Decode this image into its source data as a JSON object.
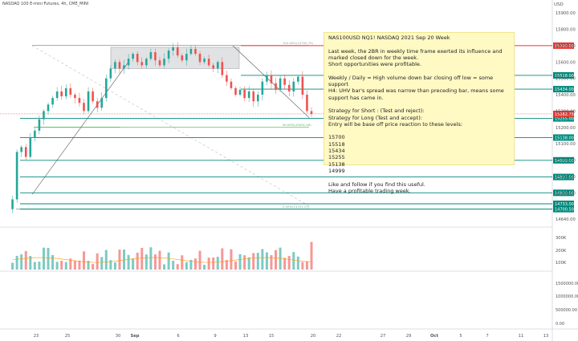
{
  "header": {
    "symbol": "NASDAQ 100 E-mini Futures, 4h, CME_MINI",
    "currency": "USD"
  },
  "note": {
    "lines": [
      "NAS100USD NQ1! NASDAQ 2021 Sep 20 Week",
      "",
      "Last week, the 2BR in weekly time frame exerted its influence and marked closed down for the week.",
      "Short opportunities were profitable.",
      "",
      "Weekly / Daily = High volume down bar closing off low = some support",
      "H4: UHV bar's spread was narrow than preceding bar, means some support has came in.",
      "",
      "Strategy for Short : (Test and reject):",
      "Strategy for Long (Test and accept):",
      "Entry will be base off price reaction to these levels:",
      "",
      "15700",
      "15518",
      "15434",
      "15255",
      "15138",
      "14999",
      "",
      "Like and follow if you find this useful.",
      "Have a profitable trading week."
    ]
  },
  "chart_data": {
    "type": "candlestick",
    "y_axis_ticks": [
      "15900.00",
      "15800.00",
      "15700.00",
      "15600.00",
      "15500.00",
      "15400.00",
      "15300.00",
      "15200.00",
      "15100.00",
      "15000.00",
      "14900.00",
      "14800.00",
      "14640.00"
    ],
    "ylim": [
      14630,
      15930
    ],
    "x_axis_ticks": [
      "23",
      "25",
      "30",
      "Sep",
      "6",
      "9",
      "13",
      "15",
      "20",
      "22",
      "27",
      "29",
      "Oct",
      "5",
      "7",
      "11",
      "13"
    ],
    "levels": [
      {
        "label": "15700.00",
        "value": 15700,
        "color": "#e53935"
      },
      {
        "label": "15518.00",
        "value": 15518,
        "color": "#00897b"
      },
      {
        "label": "15434.00",
        "value": 15434,
        "color": "#00897b"
      },
      {
        "label": "15255.00",
        "value": 15255,
        "color": "#00897b"
      },
      {
        "label": "15138.00",
        "value": 15138,
        "color": "#00897b"
      },
      {
        "label": "14999.00",
        "value": 14999,
        "color": "#00897b"
      },
      {
        "label": "14897.00",
        "value": 14897,
        "color": "#00897b"
      },
      {
        "label": "14800.00",
        "value": 14800,
        "color": "#00897b"
      },
      {
        "label": "14733.00",
        "value": 14733,
        "color": "#00897b"
      },
      {
        "label": "14700.50",
        "value": 14700.5,
        "color": "#00897b"
      }
    ],
    "current_price": {
      "label": "15282.75",
      "value": 15282.75,
      "color": "#e53935"
    },
    "fib_labels": [
      "100.00%(15700.75)",
      "50.00%(15201.00)",
      "0.00%(14701.25)"
    ],
    "volume_ticks": [
      "300K",
      "200K",
      "100K"
    ],
    "oscillator_ticks": [
      "1500000.00",
      "1000000.00",
      "500000.00",
      "0.00"
    ],
    "price_path": [
      14700,
      14760,
      15050,
      15080,
      15020,
      15140,
      15180,
      15250,
      15300,
      15340,
      15380,
      15420,
      15390,
      15440,
      15400,
      15380,
      15350,
      15300,
      15420,
      15360,
      15320,
      15380,
      15500,
      15560,
      15600,
      15560,
      15580,
      15620,
      15650,
      15600,
      15580,
      15620,
      15660,
      15610,
      15580,
      15620,
      15670,
      15690,
      15640,
      15610,
      15650,
      15680,
      15650,
      15600,
      15620,
      15580,
      15560,
      15600,
      15520,
      15480,
      15440,
      15400,
      15430,
      15380,
      15420,
      15360,
      15400,
      15480,
      15520,
      15470,
      15430,
      15500,
      15460,
      15420,
      15480,
      15510,
      15400,
      15300,
      15282
    ]
  }
}
